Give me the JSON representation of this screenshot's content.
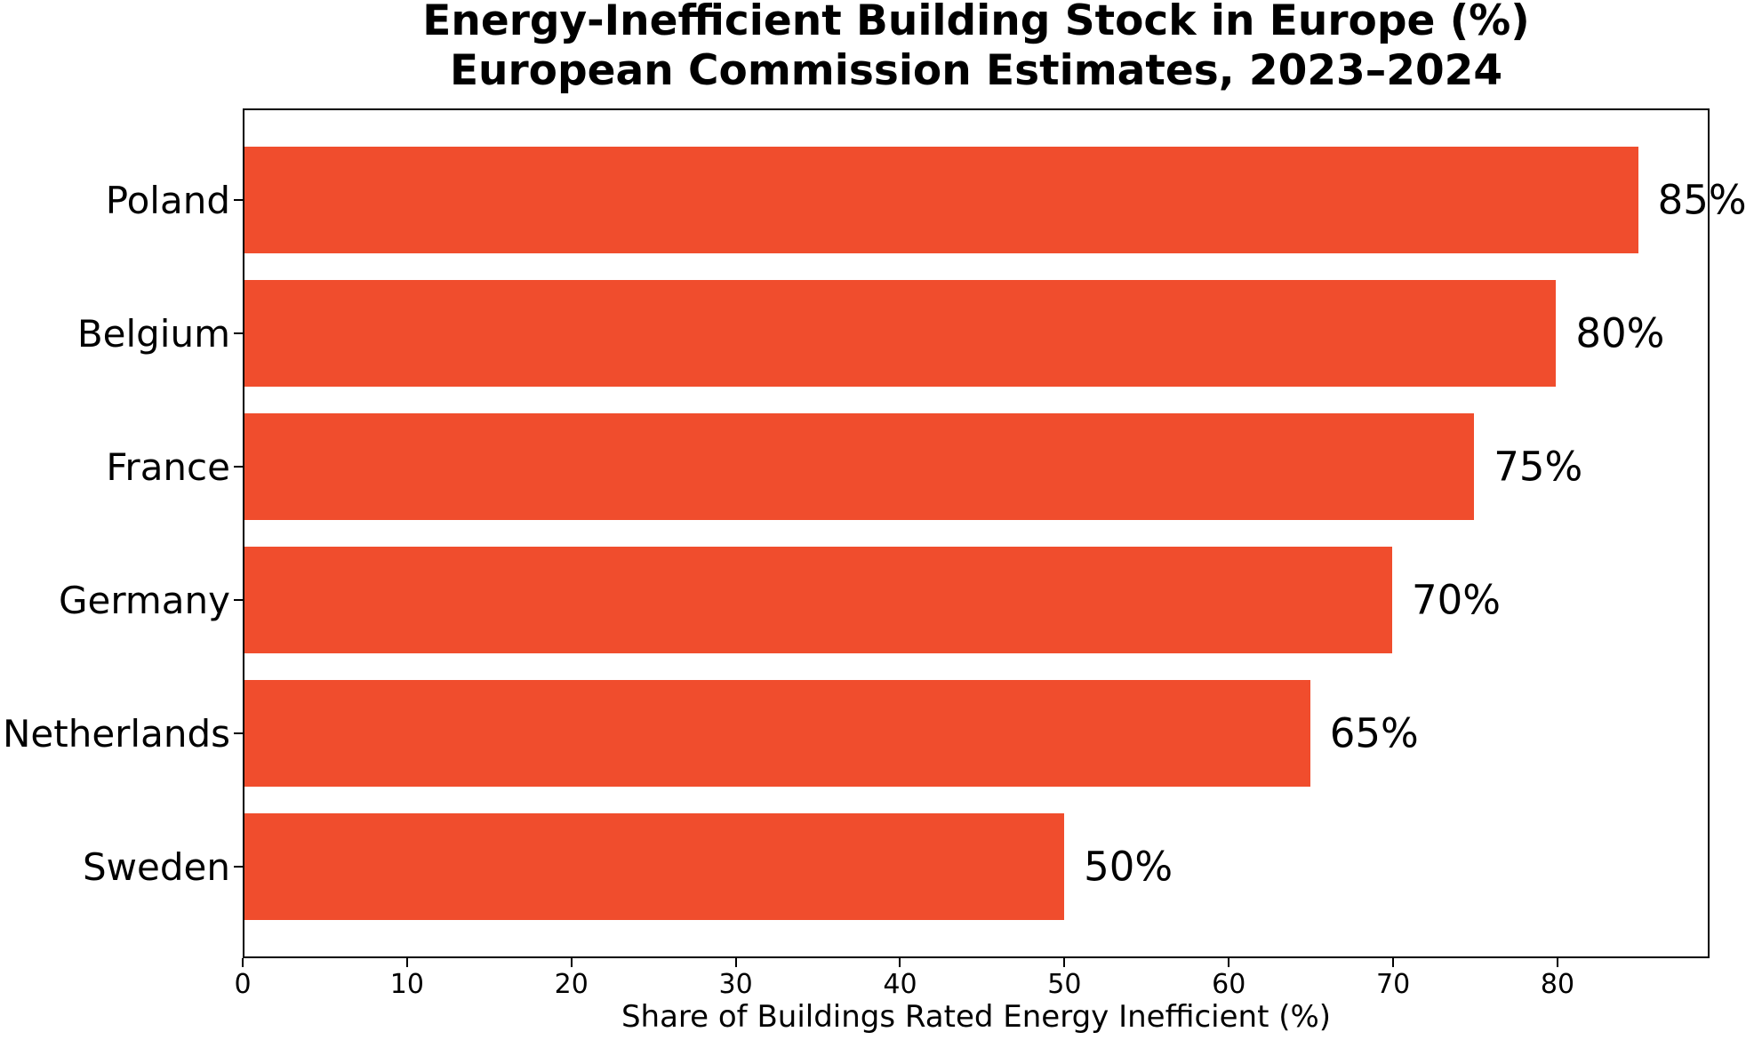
{
  "figure": {
    "title_line1": "Energy-Inefficient Building Stock in Europe (%)",
    "title_line2": "European Commission Estimates, 2023–2024"
  },
  "chart_data": {
    "type": "bar",
    "orientation": "horizontal",
    "title": "Energy-Inefficient Building Stock in Europe (%)\nEuropean Commission Estimates, 2023–2024",
    "xlabel": "Share of Buildings Rated Energy Inefficient (%)",
    "ylabel": "",
    "categories": [
      "Poland",
      "Belgium",
      "France",
      "Germany",
      "Netherlands",
      "Sweden"
    ],
    "values": [
      85,
      80,
      75,
      70,
      65,
      50
    ],
    "bar_labels": [
      "85%",
      "80%",
      "75%",
      "70%",
      "65%",
      "50%"
    ],
    "xlim": [
      0,
      89.25
    ],
    "xticks": [
      0,
      10,
      20,
      30,
      40,
      50,
      60,
      70,
      80
    ],
    "grid": false,
    "legend": "none",
    "colors": {
      "bar": "#F04D2D",
      "text": "#000000",
      "axis": "#000000",
      "background": "#FFFFFF"
    }
  }
}
